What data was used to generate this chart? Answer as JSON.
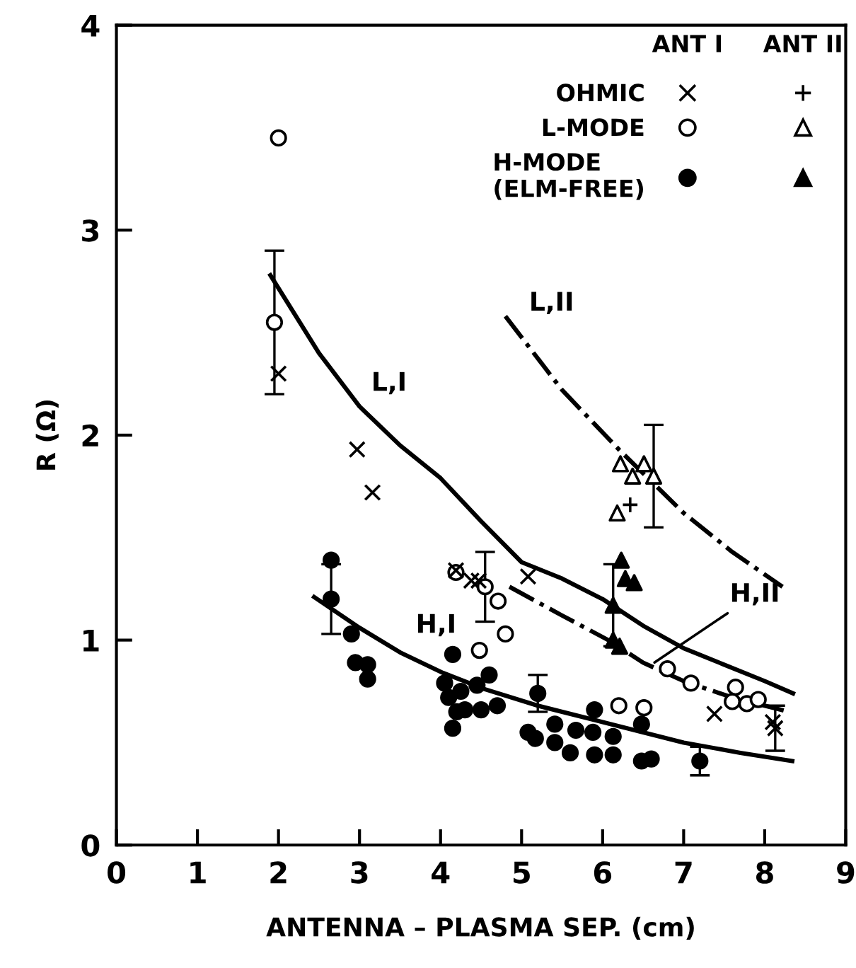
{
  "chart_data": {
    "type": "scatter",
    "xlabel": "ANTENNA – PLASMA SEP. (cm)",
    "ylabel": "R (Ω)",
    "xlim": [
      0,
      9
    ],
    "ylim": [
      0,
      4
    ],
    "xticks": [
      0,
      1,
      2,
      3,
      4,
      5,
      6,
      7,
      8,
      9
    ],
    "yticks": [
      0,
      1,
      2,
      3,
      4
    ],
    "grid": false,
    "legend": "top right",
    "series": [
      {
        "name": "OHMIC",
        "color": "#000000",
        "marker": "cross",
        "x": [
          2.0,
          2.97,
          3.16,
          4.19,
          4.38,
          4.47,
          5.08,
          7.38,
          8.1,
          8.13
        ],
        "values": [
          2.3,
          1.93,
          1.72,
          1.34,
          1.29,
          1.29,
          1.31,
          0.64,
          0.6,
          0.57
        ],
        "errors": [
          null,
          null,
          null,
          null,
          null,
          null,
          null,
          null,
          null,
          0.11
        ]
      },
      {
        "name": "L-MODE",
        "color": "#ffffff",
        "marker": "circle",
        "x": [
          2.0,
          1.95,
          4.19,
          4.55,
          4.71,
          4.8,
          4.48,
          6.2,
          6.51,
          6.8,
          7.09,
          7.64,
          7.6,
          7.78,
          7.92
        ],
        "values": [
          3.45,
          2.55,
          1.33,
          1.26,
          1.19,
          1.03,
          0.95,
          0.68,
          0.67,
          0.86,
          0.79,
          0.77,
          0.7,
          0.69,
          0.71
        ],
        "errors": [
          null,
          0.35,
          null,
          0.17,
          null,
          null,
          null,
          null,
          null,
          null,
          null,
          null,
          null,
          null,
          null
        ]
      },
      {
        "name": "H-MODE\n(ELM-FREE)",
        "color": "#000000",
        "marker": "circle",
        "x": [
          2.65,
          2.65,
          2.9,
          2.95,
          3.1,
          3.1,
          4.05,
          4.15,
          4.1,
          4.25,
          4.2,
          4.3,
          4.15,
          4.45,
          4.5,
          4.6,
          4.7,
          5.2,
          5.08,
          5.17,
          5.41,
          5.41,
          5.6,
          5.67,
          5.88,
          5.9,
          5.9,
          6.13,
          6.13,
          6.48,
          6.48,
          6.6,
          7.2
        ],
        "values": [
          1.39,
          1.2,
          1.03,
          0.89,
          0.88,
          0.81,
          0.79,
          0.93,
          0.72,
          0.75,
          0.65,
          0.66,
          0.57,
          0.78,
          0.66,
          0.83,
          0.68,
          0.74,
          0.55,
          0.52,
          0.59,
          0.5,
          0.45,
          0.56,
          0.55,
          0.66,
          0.44,
          0.53,
          0.44,
          0.59,
          0.41,
          0.42,
          0.41
        ],
        "errors": [
          null,
          0.17,
          null,
          null,
          null,
          null,
          null,
          null,
          null,
          null,
          null,
          null,
          null,
          null,
          null,
          null,
          null,
          0.09,
          null,
          null,
          null,
          null,
          null,
          null,
          null,
          null,
          null,
          null,
          null,
          null,
          null,
          null,
          0.07
        ]
      },
      {
        "color": "#000000",
        "marker": "plus",
        "x": [
          6.34
        ],
        "values": [
          1.66
        ]
      },
      {
        "color": "#ffffff",
        "marker": "triangle",
        "x": [
          6.22,
          6.51,
          6.37,
          6.63,
          6.18
        ],
        "values": [
          1.86,
          1.86,
          1.8,
          1.8,
          1.62
        ],
        "errors": [
          null,
          null,
          null,
          0.25,
          null
        ]
      },
      {
        "color": "#000000",
        "marker": "triangle",
        "x": [
          6.23,
          6.28,
          6.39,
          6.13,
          6.13,
          6.21
        ],
        "values": [
          1.39,
          1.3,
          1.28,
          1.17,
          1.0,
          0.97
        ],
        "errors": [
          null,
          null,
          null,
          0.2,
          null,
          null
        ]
      },
      {
        "type": "line",
        "color": "#000000",
        "line_style": "solid",
        "x": [
          1.9,
          2.5,
          3,
          3.5,
          4,
          4.5,
          5,
          5.5,
          6,
          6.5,
          7,
          7.5,
          8,
          8.35
        ],
        "values": [
          2.78,
          2.4,
          2.14,
          1.95,
          1.79,
          1.58,
          1.38,
          1.3,
          1.2,
          1.07,
          0.96,
          0.88,
          0.8,
          0.74
        ]
      },
      {
        "type": "line",
        "color": "#000000",
        "line_style": "dashdot",
        "x": [
          4.8,
          5.5,
          6.2,
          7,
          7.6,
          8.22
        ],
        "values": [
          2.58,
          2.22,
          1.93,
          1.62,
          1.43,
          1.26
        ]
      },
      {
        "type": "line",
        "color": "#000000",
        "line_style": "solid",
        "x": [
          2.44,
          3,
          3.5,
          4.03,
          4.55,
          5.2,
          5.9,
          6.5,
          7,
          7.7,
          8.34
        ],
        "values": [
          1.21,
          1.06,
          0.94,
          0.84,
          0.76,
          0.68,
          0.61,
          0.55,
          0.5,
          0.45,
          0.41
        ]
      },
      {
        "type": "line",
        "color": "#000000",
        "line_style": "dashdot",
        "x": [
          4.85,
          5.5,
          6.07,
          6.5,
          7,
          7.6,
          8.3
        ],
        "values": [
          1.26,
          1.12,
          1.0,
          0.89,
          0.8,
          0.72,
          0.65
        ]
      }
    ],
    "annotations": [
      {
        "text": "L,I",
        "x": 3.0,
        "y": 2.14
      },
      {
        "text": "L,II",
        "x": 4.85,
        "y": 2.55
      },
      {
        "text": "H,I",
        "x": 3.5,
        "y": 0.94
      },
      {
        "text": "H,II",
        "x": 6.6,
        "y": 0.88
      },
      "ANT I",
      "ANT II"
    ]
  }
}
